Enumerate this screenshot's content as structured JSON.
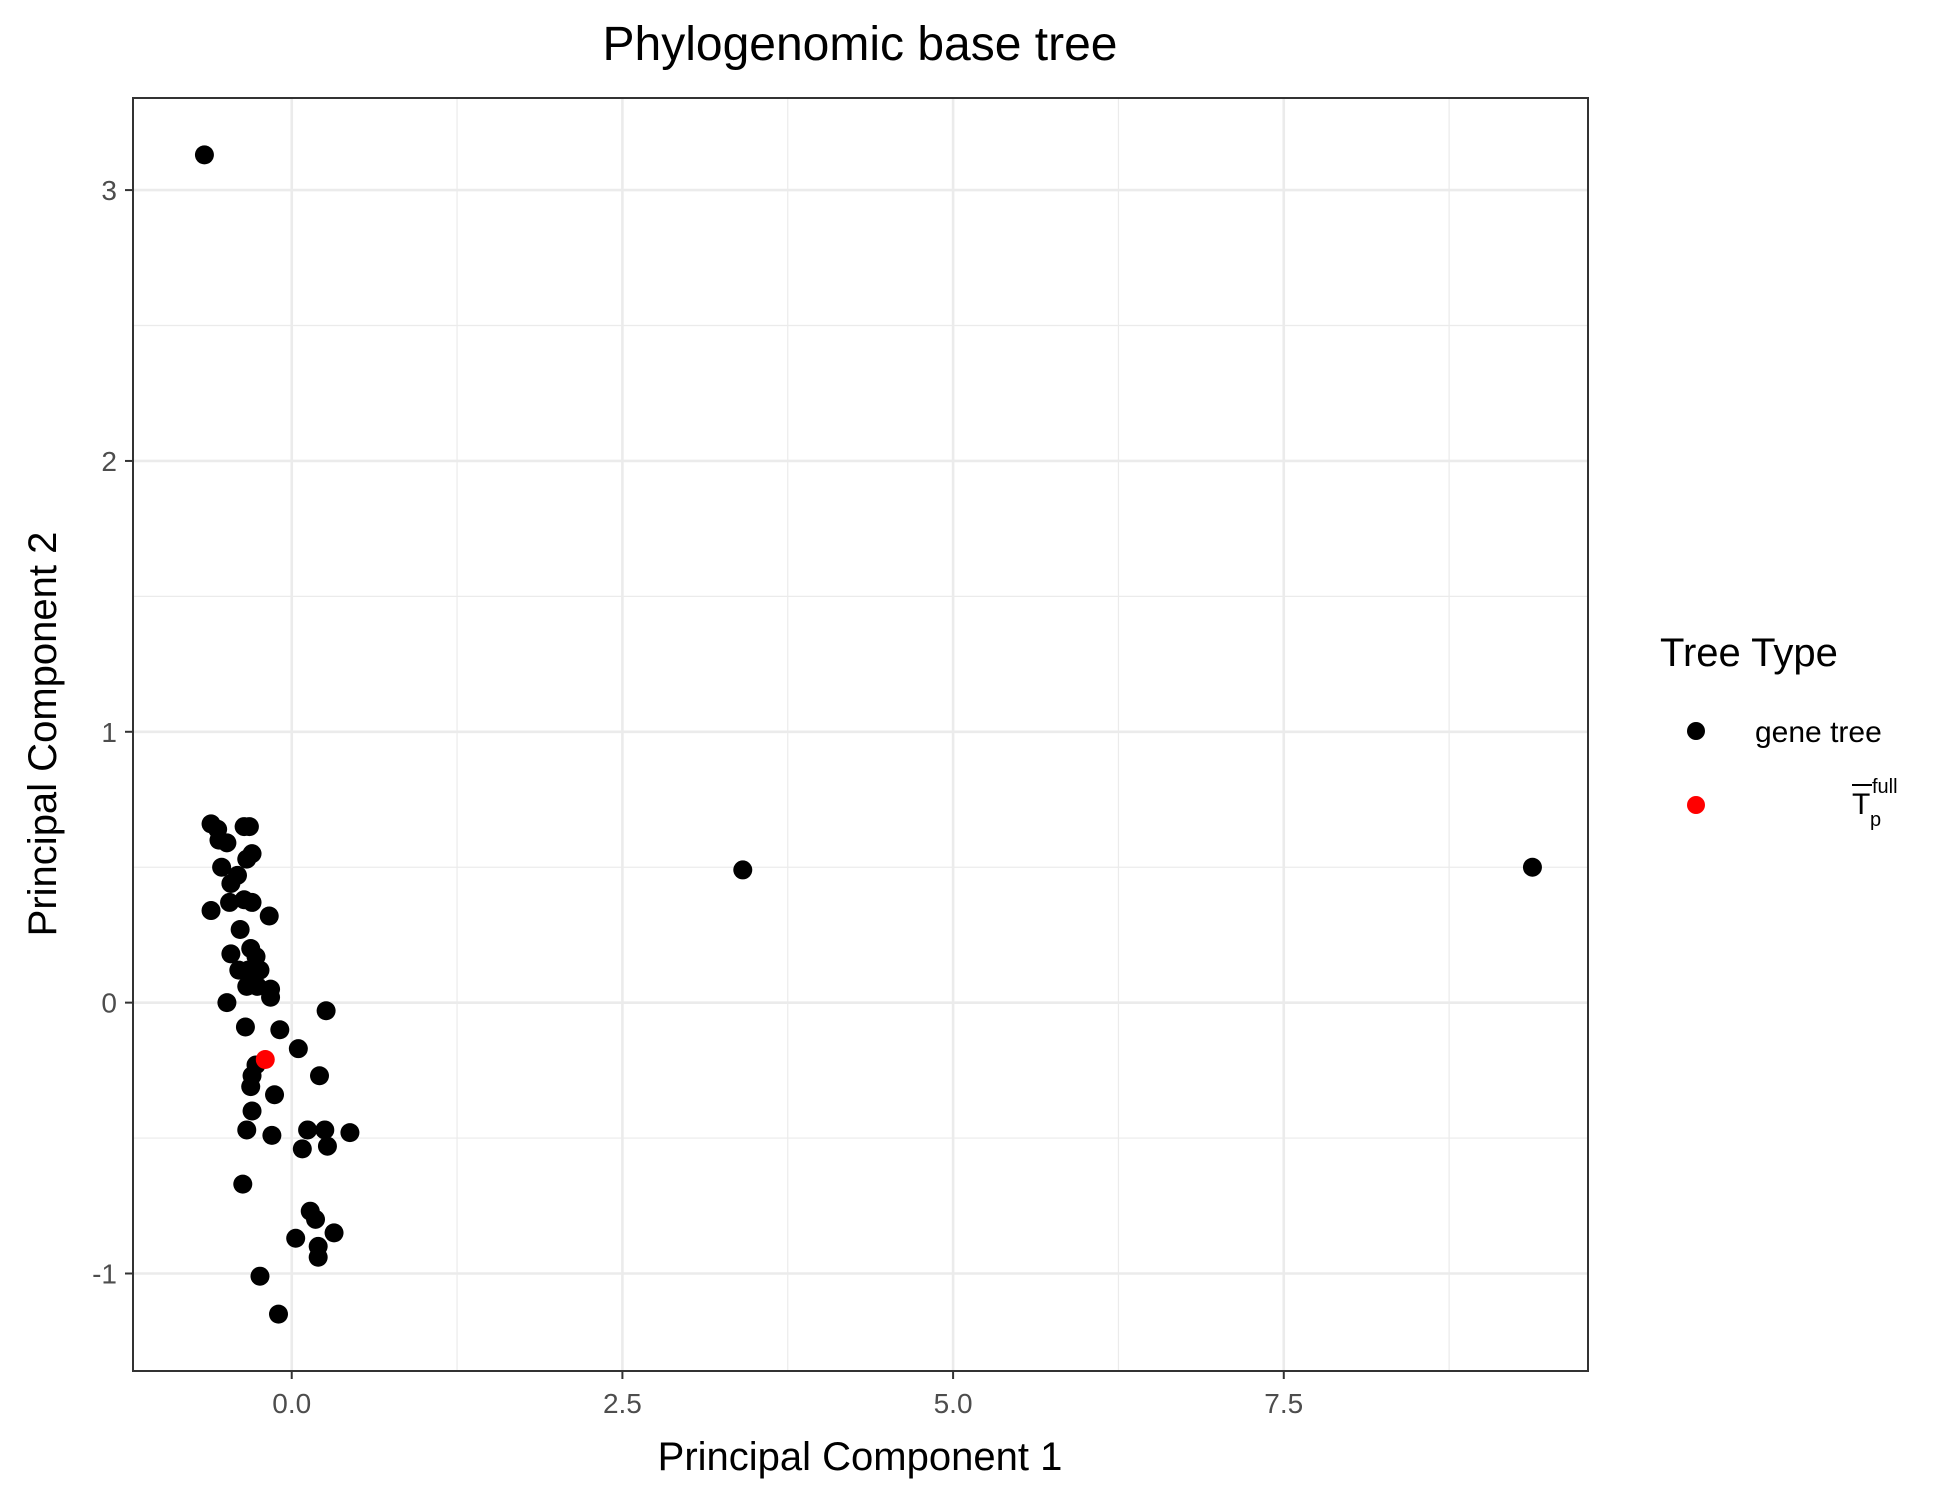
{
  "chart_data": {
    "type": "scatter",
    "title": "Phylogenomic base tree",
    "xlabel": "Principal Component 1",
    "ylabel": "Principal Component 2",
    "xlim": [
      -1.2,
      9.8
    ],
    "ylim": [
      -1.36,
      3.34
    ],
    "x_ticks": [
      0.0,
      2.5,
      5.0,
      7.5
    ],
    "x_tick_labels": [
      "0.0",
      "2.5",
      "5.0",
      "7.5"
    ],
    "y_ticks": [
      -1,
      0,
      1,
      2,
      3
    ],
    "y_tick_labels": [
      "-1",
      "0",
      "1",
      "2",
      "3"
    ],
    "grid": true,
    "legend": {
      "title": "Tree Type",
      "position": "right",
      "entries": [
        {
          "label": "gene tree",
          "color": "#000000"
        },
        {
          "label_main": "T",
          "label_super": "full",
          "label_sub": "p",
          "overline": true,
          "color": "#ff0000"
        }
      ]
    },
    "series": [
      {
        "name": "gene tree",
        "color": "#000000",
        "points": [
          {
            "x": -0.66,
            "y": 3.13
          },
          {
            "x": 3.41,
            "y": 0.49
          },
          {
            "x": 9.38,
            "y": 0.5
          },
          {
            "x": -0.61,
            "y": 0.66
          },
          {
            "x": -0.56,
            "y": 0.64
          },
          {
            "x": -0.55,
            "y": 0.6
          },
          {
            "x": -0.49,
            "y": 0.59
          },
          {
            "x": -0.36,
            "y": 0.65
          },
          {
            "x": -0.32,
            "y": 0.65
          },
          {
            "x": -0.3,
            "y": 0.55
          },
          {
            "x": -0.34,
            "y": 0.53
          },
          {
            "x": -0.53,
            "y": 0.5
          },
          {
            "x": -0.41,
            "y": 0.47
          },
          {
            "x": -0.46,
            "y": 0.44
          },
          {
            "x": -0.47,
            "y": 0.37
          },
          {
            "x": -0.36,
            "y": 0.38
          },
          {
            "x": -0.3,
            "y": 0.37
          },
          {
            "x": -0.61,
            "y": 0.34
          },
          {
            "x": -0.17,
            "y": 0.32
          },
          {
            "x": -0.39,
            "y": 0.27
          },
          {
            "x": -0.31,
            "y": 0.2
          },
          {
            "x": -0.46,
            "y": 0.18
          },
          {
            "x": -0.27,
            "y": 0.17
          },
          {
            "x": -0.4,
            "y": 0.12
          },
          {
            "x": -0.33,
            "y": 0.12
          },
          {
            "x": -0.24,
            "y": 0.12
          },
          {
            "x": -0.29,
            "y": 0.1
          },
          {
            "x": -0.34,
            "y": 0.06
          },
          {
            "x": -0.26,
            "y": 0.06
          },
          {
            "x": -0.16,
            "y": 0.05
          },
          {
            "x": -0.16,
            "y": 0.02
          },
          {
            "x": -0.49,
            "y": 0.0
          },
          {
            "x": 0.26,
            "y": -0.03
          },
          {
            "x": -0.35,
            "y": -0.09
          },
          {
            "x": -0.09,
            "y": -0.1
          },
          {
            "x": 0.05,
            "y": -0.17
          },
          {
            "x": -0.27,
            "y": -0.23
          },
          {
            "x": 0.21,
            "y": -0.27
          },
          {
            "x": -0.3,
            "y": -0.27
          },
          {
            "x": -0.31,
            "y": -0.31
          },
          {
            "x": -0.13,
            "y": -0.34
          },
          {
            "x": -0.3,
            "y": -0.4
          },
          {
            "x": -0.34,
            "y": -0.47
          },
          {
            "x": 0.12,
            "y": -0.47
          },
          {
            "x": 0.25,
            "y": -0.47
          },
          {
            "x": 0.44,
            "y": -0.48
          },
          {
            "x": -0.15,
            "y": -0.49
          },
          {
            "x": 0.27,
            "y": -0.53
          },
          {
            "x": 0.08,
            "y": -0.54
          },
          {
            "x": -0.37,
            "y": -0.67
          },
          {
            "x": 0.14,
            "y": -0.77
          },
          {
            "x": 0.18,
            "y": -0.8
          },
          {
            "x": 0.32,
            "y": -0.85
          },
          {
            "x": 0.03,
            "y": -0.87
          },
          {
            "x": 0.2,
            "y": -0.9
          },
          {
            "x": 0.2,
            "y": -0.94
          },
          {
            "x": -0.24,
            "y": -1.01
          },
          {
            "x": -0.1,
            "y": -1.15
          }
        ]
      },
      {
        "name": "T p full",
        "color": "#ff0000",
        "points": [
          {
            "x": -0.2,
            "y": -0.21
          }
        ]
      }
    ]
  }
}
